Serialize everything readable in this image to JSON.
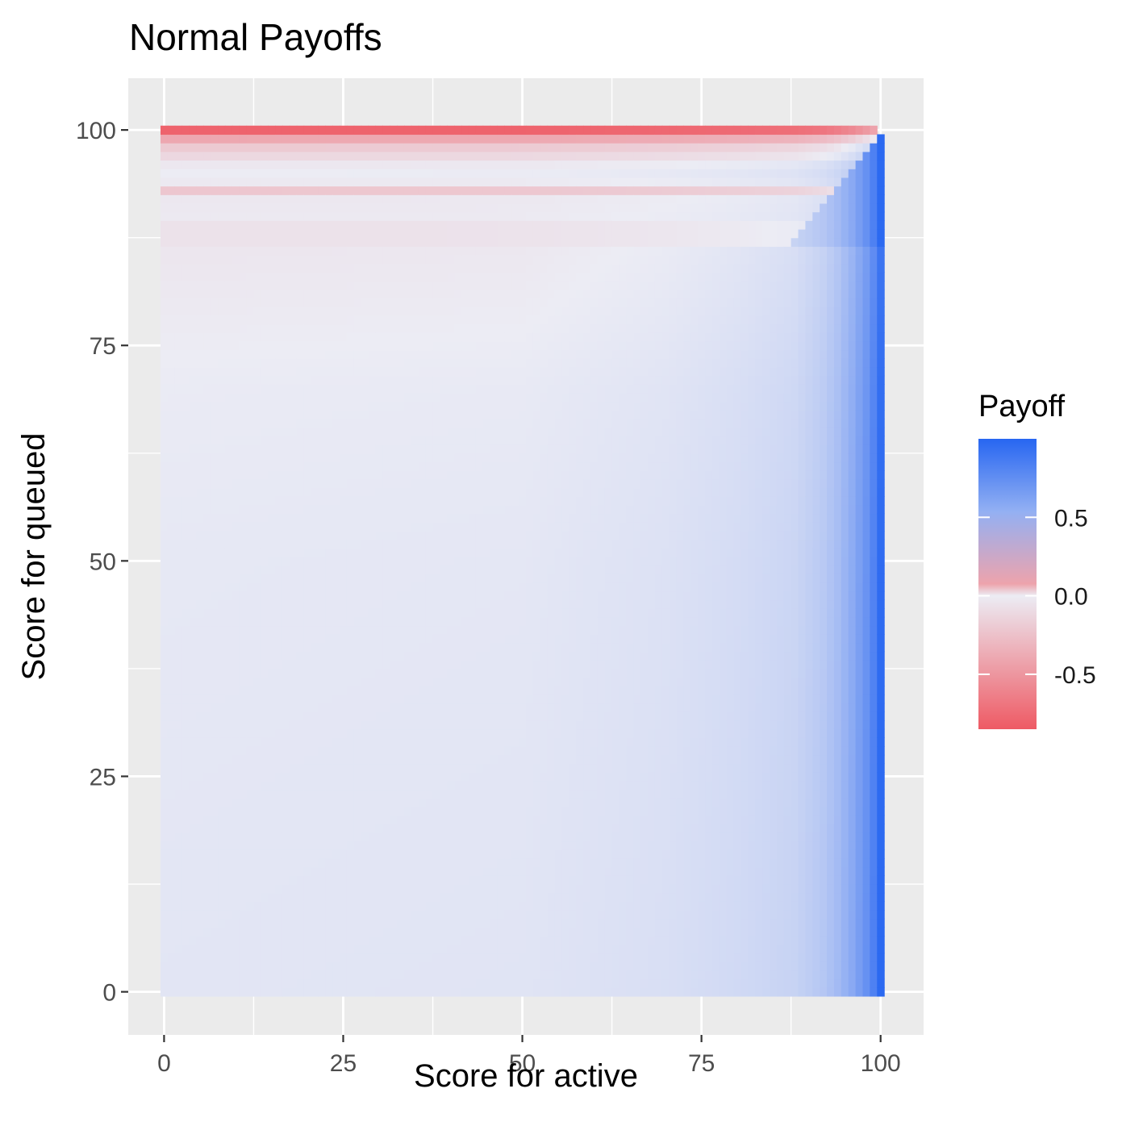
{
  "chart_data": {
    "type": "heatmap",
    "title": "Normal Payoffs",
    "xlabel": "Score for active",
    "ylabel": "Score for queued",
    "xlim": [
      -5,
      106
    ],
    "ylim": [
      -5,
      106
    ],
    "x_ticks": [
      "0",
      "25",
      "50",
      "75",
      "100"
    ],
    "y_ticks": [
      "0",
      "25",
      "50",
      "75",
      "100"
    ],
    "grid": true,
    "grid_minor": true,
    "cell_step": 1,
    "x_range": [
      0,
      100
    ],
    "y_range": [
      0,
      100
    ],
    "legend": {
      "title": "Payoff",
      "position": "right",
      "labels": [
        "0.5",
        "0.0",
        "-0.5"
      ],
      "label_values": [
        0.5,
        0.0,
        -0.5
      ],
      "range": [
        -0.85,
        1.0
      ]
    },
    "colors": {
      "low": "#ee5a64",
      "mid": "#ececf4",
      "high": "#2766f1",
      "panel": "#ebebeb",
      "grid": "#ffffff"
    },
    "column_effect_payoff": [
      {
        "x": 0,
        "v": 0.05
      },
      {
        "x": 50,
        "v": 0.06
      },
      {
        "x": 70,
        "v": 0.1
      },
      {
        "x": 80,
        "v": 0.14
      },
      {
        "x": 88,
        "v": 0.19
      },
      {
        "x": 92,
        "v": 0.28
      },
      {
        "x": 94,
        "v": 0.37
      },
      {
        "x": 96,
        "v": 0.5
      },
      {
        "x": 98,
        "v": 0.68
      },
      {
        "x": 99,
        "v": 0.8
      },
      {
        "x": 100,
        "v": 0.98
      }
    ],
    "row_effect_payoff": [
      {
        "y": 100,
        "v": -0.8
      },
      {
        "y": 99,
        "v": -0.4
      },
      {
        "y": 98,
        "v": -0.2
      },
      {
        "y": 97,
        "v": -0.12
      },
      {
        "y": 96,
        "v": -0.03
      },
      {
        "y": 95,
        "v": 0.0
      },
      {
        "y": 94,
        "v": -0.02
      },
      {
        "y": 93,
        "v": -0.22
      },
      {
        "y": 92,
        "v": -0.03
      },
      {
        "y": 90,
        "v": -0.02
      },
      {
        "y": 89,
        "v": -0.06
      },
      {
        "y": 87,
        "v": -0.06
      },
      {
        "y": 80,
        "v": -0.04
      },
      {
        "y": 70,
        "v": -0.01
      },
      {
        "y": 50,
        "v": 0.01
      },
      {
        "y": 0,
        "v": 0.03
      }
    ]
  }
}
